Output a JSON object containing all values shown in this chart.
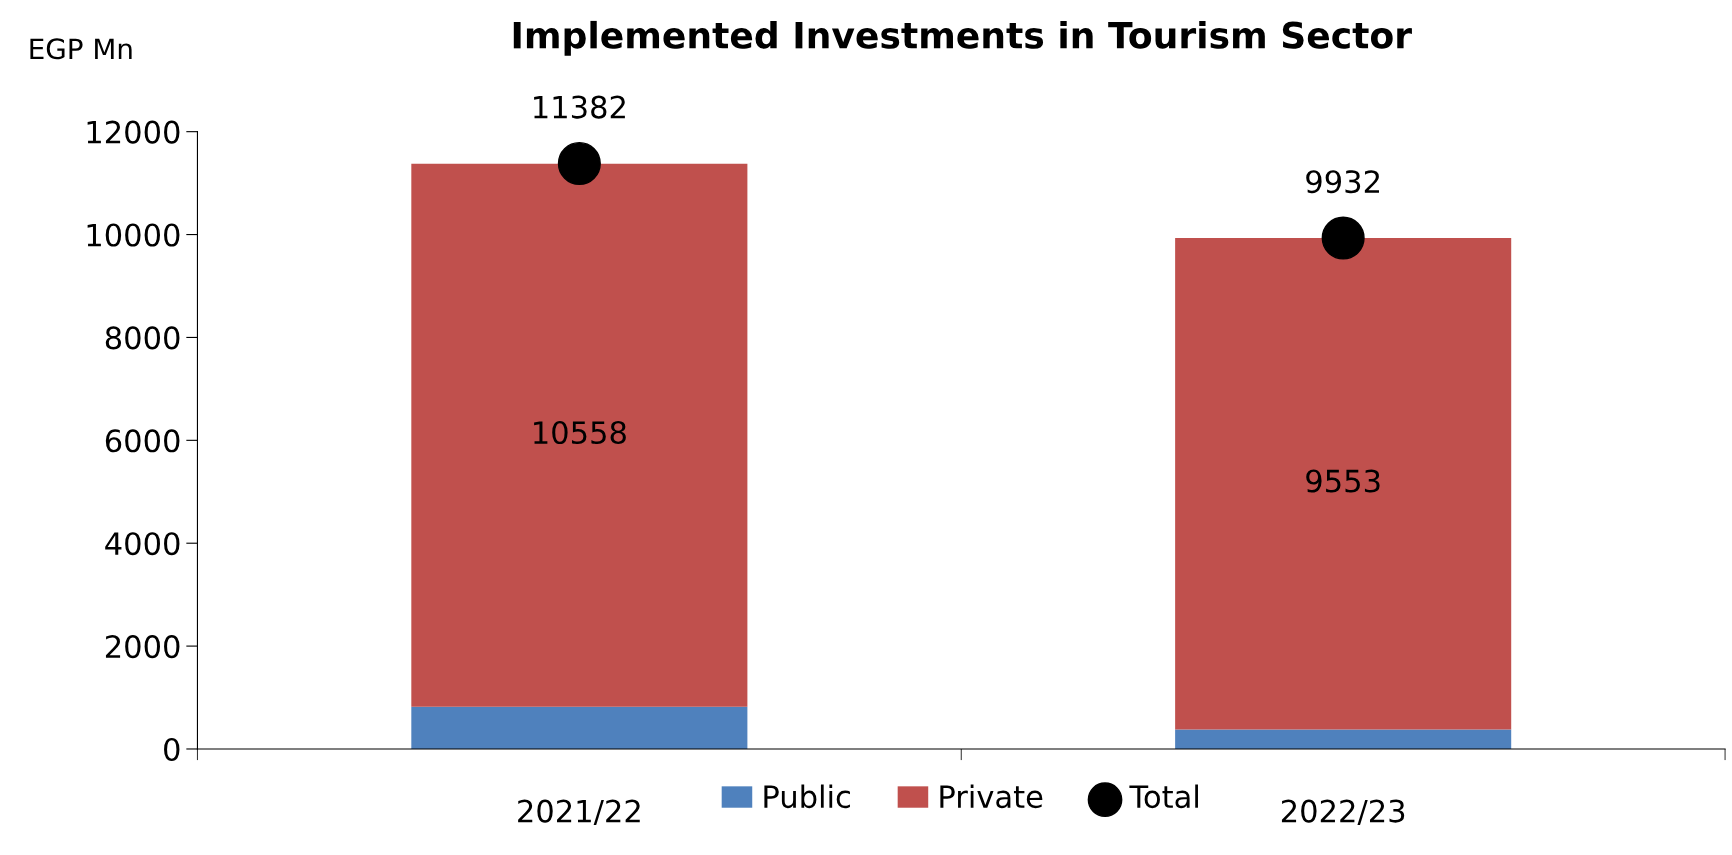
{
  "chart_data": {
    "type": "bar",
    "title": "Implemented Investments in Tourism Sector",
    "ylabel": "EGP Mn",
    "categories": [
      "2021/22",
      "2022/23"
    ],
    "stacked": true,
    "series": [
      {
        "name": "Public",
        "color": "#4f81bd",
        "values": [
          820,
          380
        ]
      },
      {
        "name": "Private",
        "color": "#c0504d",
        "values": [
          10558,
          9553
        ],
        "value_labels": [
          "10558",
          "9553"
        ]
      },
      {
        "name": "Total",
        "type": "scatter",
        "color": "#000000",
        "x": [
          "2021/22",
          "2022/23"
        ],
        "values": [
          11382,
          9932
        ],
        "value_labels": [
          "11382",
          "9932"
        ]
      }
    ],
    "ylim": [
      0,
      12000
    ],
    "yticks": [
      0,
      2000,
      4000,
      6000,
      8000,
      10000,
      12000
    ],
    "grid": false,
    "legend": "bottom",
    "marker": "circle"
  }
}
